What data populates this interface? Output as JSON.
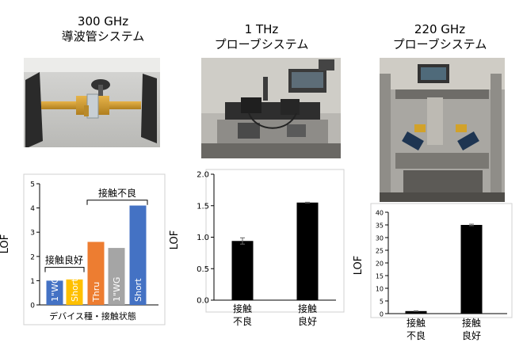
{
  "panels": [
    {
      "title_line1": "300 GHz",
      "title_line2": "導波管システム"
    },
    {
      "title_line1": "1 THz",
      "title_line2": "プローブシステム"
    },
    {
      "title_line1": "220 GHz",
      "title_line2": "プローブシステム"
    }
  ],
  "chart_data": [
    {
      "type": "bar",
      "ylabel": "LOF",
      "xlabel": "デバイス種・接触状態",
      "ylim": [
        0,
        5
      ],
      "yticks": [
        "0",
        "1",
        "2",
        "3",
        "4",
        "5"
      ],
      "categories": [
        "1\"WG",
        "Short",
        "Thru",
        "1\"WG",
        "Short"
      ],
      "values": [
        1.0,
        1.05,
        2.6,
        2.35,
        4.1
      ],
      "colors": [
        "#4472C4",
        "#FFC000",
        "#ED7D31",
        "#A5A5A5",
        "#4472C4"
      ],
      "annotations": {
        "good": "接触良好",
        "bad": "接触不良"
      },
      "grid": false
    },
    {
      "type": "bar",
      "ylabel": "LOF",
      "ylim": [
        0,
        2.0
      ],
      "yticks": [
        "0.0",
        "0.5",
        "1.0",
        "1.5",
        "2.0"
      ],
      "categories": [
        [
          "接触",
          "不良"
        ],
        [
          "接触",
          "良好"
        ]
      ],
      "values": [
        0.94,
        1.55
      ],
      "errors": [
        0.05,
        0.005
      ],
      "colors": [
        "#000000",
        "#000000"
      ],
      "grid": false
    },
    {
      "type": "bar",
      "ylabel": "LOF",
      "ylim": [
        0,
        40
      ],
      "yticks": [
        "0",
        "5",
        "10",
        "15",
        "20",
        "25",
        "30",
        "35",
        "40"
      ],
      "categories": [
        [
          "接触",
          "不良"
        ],
        [
          "接触",
          "良好"
        ]
      ],
      "values": [
        1.0,
        35
      ],
      "errors": [
        0.1,
        0.3
      ],
      "colors": [
        "#000000",
        "#000000"
      ],
      "grid": false
    }
  ]
}
